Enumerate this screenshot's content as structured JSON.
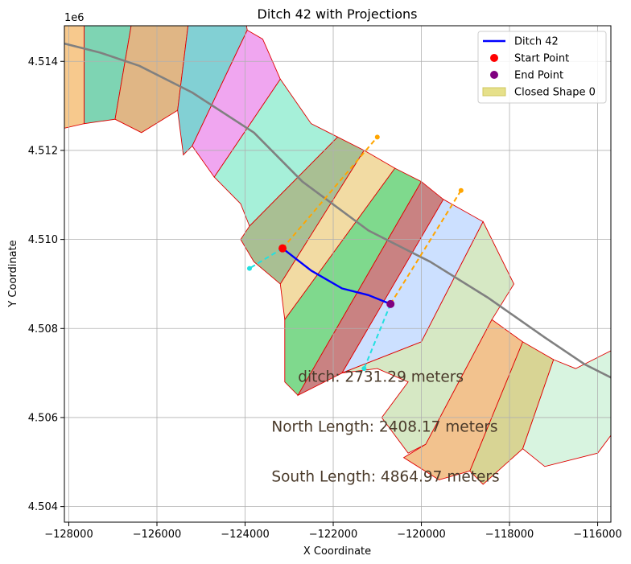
{
  "chart_data": {
    "type": "line",
    "title": "Ditch 42 with Projections",
    "xlabel": "X Coordinate",
    "ylabel": "Y Coordinate",
    "y_offset_label": "1e6",
    "xlim": [
      -128100,
      -115700
    ],
    "ylim": [
      4503650,
      4514800
    ],
    "x_ticks": [
      -128000,
      -126000,
      -124000,
      -122000,
      -120000,
      -118000,
      -116000
    ],
    "x_tick_labels": [
      "−128000",
      "−126000",
      "−124000",
      "−122000",
      "−120000",
      "−118000",
      "−116000"
    ],
    "y_ticks": [
      4504000,
      4506000,
      4508000,
      4510000,
      4512000,
      4514000
    ],
    "y_tick_labels": [
      "4.504",
      "4.506",
      "4.508",
      "4.510",
      "4.512",
      "4.514"
    ],
    "grid": true,
    "legend_position": "upper right",
    "legend": [
      {
        "label": "Ditch 42",
        "kind": "line",
        "color": "#0000ff"
      },
      {
        "label": "Start Point",
        "kind": "dot",
        "color": "#ff0000"
      },
      {
        "label": "End Point",
        "kind": "dot",
        "color": "#800080"
      },
      {
        "label": "Closed Shape 0",
        "kind": "patch",
        "color": "#e6e08a"
      }
    ],
    "strips": [
      {
        "color": "#f7c98d",
        "points": [
          [
            -128100,
            4515000
          ],
          [
            -127650,
            4515000
          ],
          [
            -127650,
            4512600
          ],
          [
            -128100,
            4512500
          ]
        ]
      },
      {
        "color": "#7ed4b3",
        "points": [
          [
            -127650,
            4515000
          ],
          [
            -126550,
            4515000
          ],
          [
            -126950,
            4512700
          ],
          [
            -127650,
            4512600
          ]
        ]
      },
      {
        "color": "#e0b685",
        "points": [
          [
            -126550,
            4515000
          ],
          [
            -125270,
            4515000
          ],
          [
            -125530,
            4512900
          ],
          [
            -126350,
            4512400
          ],
          [
            -126950,
            4512700
          ]
        ]
      },
      {
        "color": "#82d0d4",
        "points": [
          [
            -125270,
            4515000
          ],
          [
            -124000,
            4515000
          ],
          [
            -123950,
            4514700
          ],
          [
            -125200,
            4512100
          ],
          [
            -125400,
            4511900
          ],
          [
            -125530,
            4512900
          ]
        ]
      },
      {
        "color": "#f0a6f0",
        "points": [
          [
            -123950,
            4514700
          ],
          [
            -123600,
            4514500
          ],
          [
            -123200,
            4513600
          ],
          [
            -124700,
            4511400
          ],
          [
            -125200,
            4512100
          ]
        ]
      },
      {
        "color": "#a6f0d9",
        "points": [
          [
            -123200,
            4513600
          ],
          [
            -122500,
            4512600
          ],
          [
            -121900,
            4512300
          ],
          [
            -123900,
            4510300
          ],
          [
            -124100,
            4510800
          ],
          [
            -124700,
            4511400
          ]
        ]
      },
      {
        "color": "#a9bf93",
        "points": [
          [
            -121900,
            4512300
          ],
          [
            -121300,
            4512000
          ],
          [
            -123200,
            4509000
          ],
          [
            -123800,
            4509500
          ],
          [
            -124100,
            4510000
          ],
          [
            -123900,
            4510300
          ]
        ]
      },
      {
        "color": "#f2dba3",
        "points": [
          [
            -121300,
            4512000
          ],
          [
            -120600,
            4511600
          ],
          [
            -123100,
            4508200
          ],
          [
            -123200,
            4509000
          ]
        ]
      },
      {
        "color": "#7fd98d",
        "points": [
          [
            -120600,
            4511600
          ],
          [
            -120000,
            4511300
          ],
          [
            -122800,
            4506500
          ],
          [
            -123100,
            4506800
          ],
          [
            -123100,
            4508200
          ]
        ]
      },
      {
        "color": "#c98282",
        "points": [
          [
            -120000,
            4511300
          ],
          [
            -119500,
            4510900
          ],
          [
            -121800,
            4507000
          ],
          [
            -122800,
            4506500
          ]
        ]
      },
      {
        "color": "#cce0ff",
        "points": [
          [
            -119500,
            4510900
          ],
          [
            -118600,
            4510400
          ],
          [
            -120000,
            4507700
          ],
          [
            -121800,
            4507000
          ]
        ]
      },
      {
        "color": "#d6e8c4",
        "points": [
          [
            -118600,
            4510400
          ],
          [
            -117900,
            4509000
          ],
          [
            -118400,
            4508200
          ],
          [
            -119900,
            4505400
          ],
          [
            -120300,
            4505200
          ],
          [
            -120900,
            4506000
          ],
          [
            -120300,
            4506800
          ],
          [
            -121000,
            4507100
          ],
          [
            -121800,
            4507000
          ],
          [
            -120000,
            4507700
          ]
        ]
      },
      {
        "color": "#f2c28e",
        "points": [
          [
            -118400,
            4508200
          ],
          [
            -117700,
            4507700
          ],
          [
            -118900,
            4504800
          ],
          [
            -119600,
            4504600
          ],
          [
            -120400,
            4505100
          ],
          [
            -119900,
            4505400
          ]
        ]
      },
      {
        "color": "#d8d494",
        "points": [
          [
            -117700,
            4507700
          ],
          [
            -117000,
            4507300
          ],
          [
            -117700,
            4505300
          ],
          [
            -118600,
            4504500
          ],
          [
            -118900,
            4504800
          ]
        ]
      },
      {
        "color": "#d8f4e0",
        "points": [
          [
            -117000,
            4507300
          ],
          [
            -116500,
            4507100
          ],
          [
            -115900,
            4507400
          ],
          [
            -115700,
            4507500
          ],
          [
            -115700,
            4505600
          ],
          [
            -116000,
            4505200
          ],
          [
            -117200,
            4504900
          ],
          [
            -117700,
            4505300
          ]
        ]
      }
    ],
    "centerline": [
      [
        -128100,
        4514400
      ],
      [
        -127300,
        4514200
      ],
      [
        -126400,
        4513900
      ],
      [
        -125200,
        4513300
      ],
      [
        -123800,
        4512400
      ],
      [
        -122700,
        4511300
      ],
      [
        -121200,
        4510200
      ],
      [
        -119800,
        4509500
      ],
      [
        -118500,
        4508700
      ],
      [
        -117200,
        4507800
      ],
      [
        -116300,
        4507200
      ],
      [
        -115700,
        4506900
      ]
    ],
    "ditch": {
      "name": "Ditch 42",
      "color": "#0000ff",
      "points": [
        [
          -123150,
          4509800
        ],
        [
          -122500,
          4509300
        ],
        [
          -121800,
          4508900
        ],
        [
          -121200,
          4508750
        ],
        [
          -120700,
          4508550
        ]
      ]
    },
    "start_point": [
      -123150,
      4509800
    ],
    "end_point": [
      -120700,
      4508550
    ],
    "north_projections": [
      [
        [
          -123150,
          4509800
        ],
        [
          -121000,
          4512300
        ]
      ],
      [
        [
          -120700,
          4508550
        ],
        [
          -119100,
          4511100
        ]
      ]
    ],
    "south_projections": [
      [
        [
          -123150,
          4509800
        ],
        [
          -123900,
          4509350
        ]
      ],
      [
        [
          -120700,
          4508550
        ],
        [
          -121300,
          4507100
        ]
      ]
    ],
    "annotations": [
      {
        "text": "ditch: 2731.29 meters",
        "x": -122800,
        "y": 4506800
      },
      {
        "text": "North Length: 2408.17 meters",
        "x": -123400,
        "y": 4505680
      },
      {
        "text": "South Length: 4864.97 meters",
        "x": -123400,
        "y": 4504560
      }
    ]
  }
}
